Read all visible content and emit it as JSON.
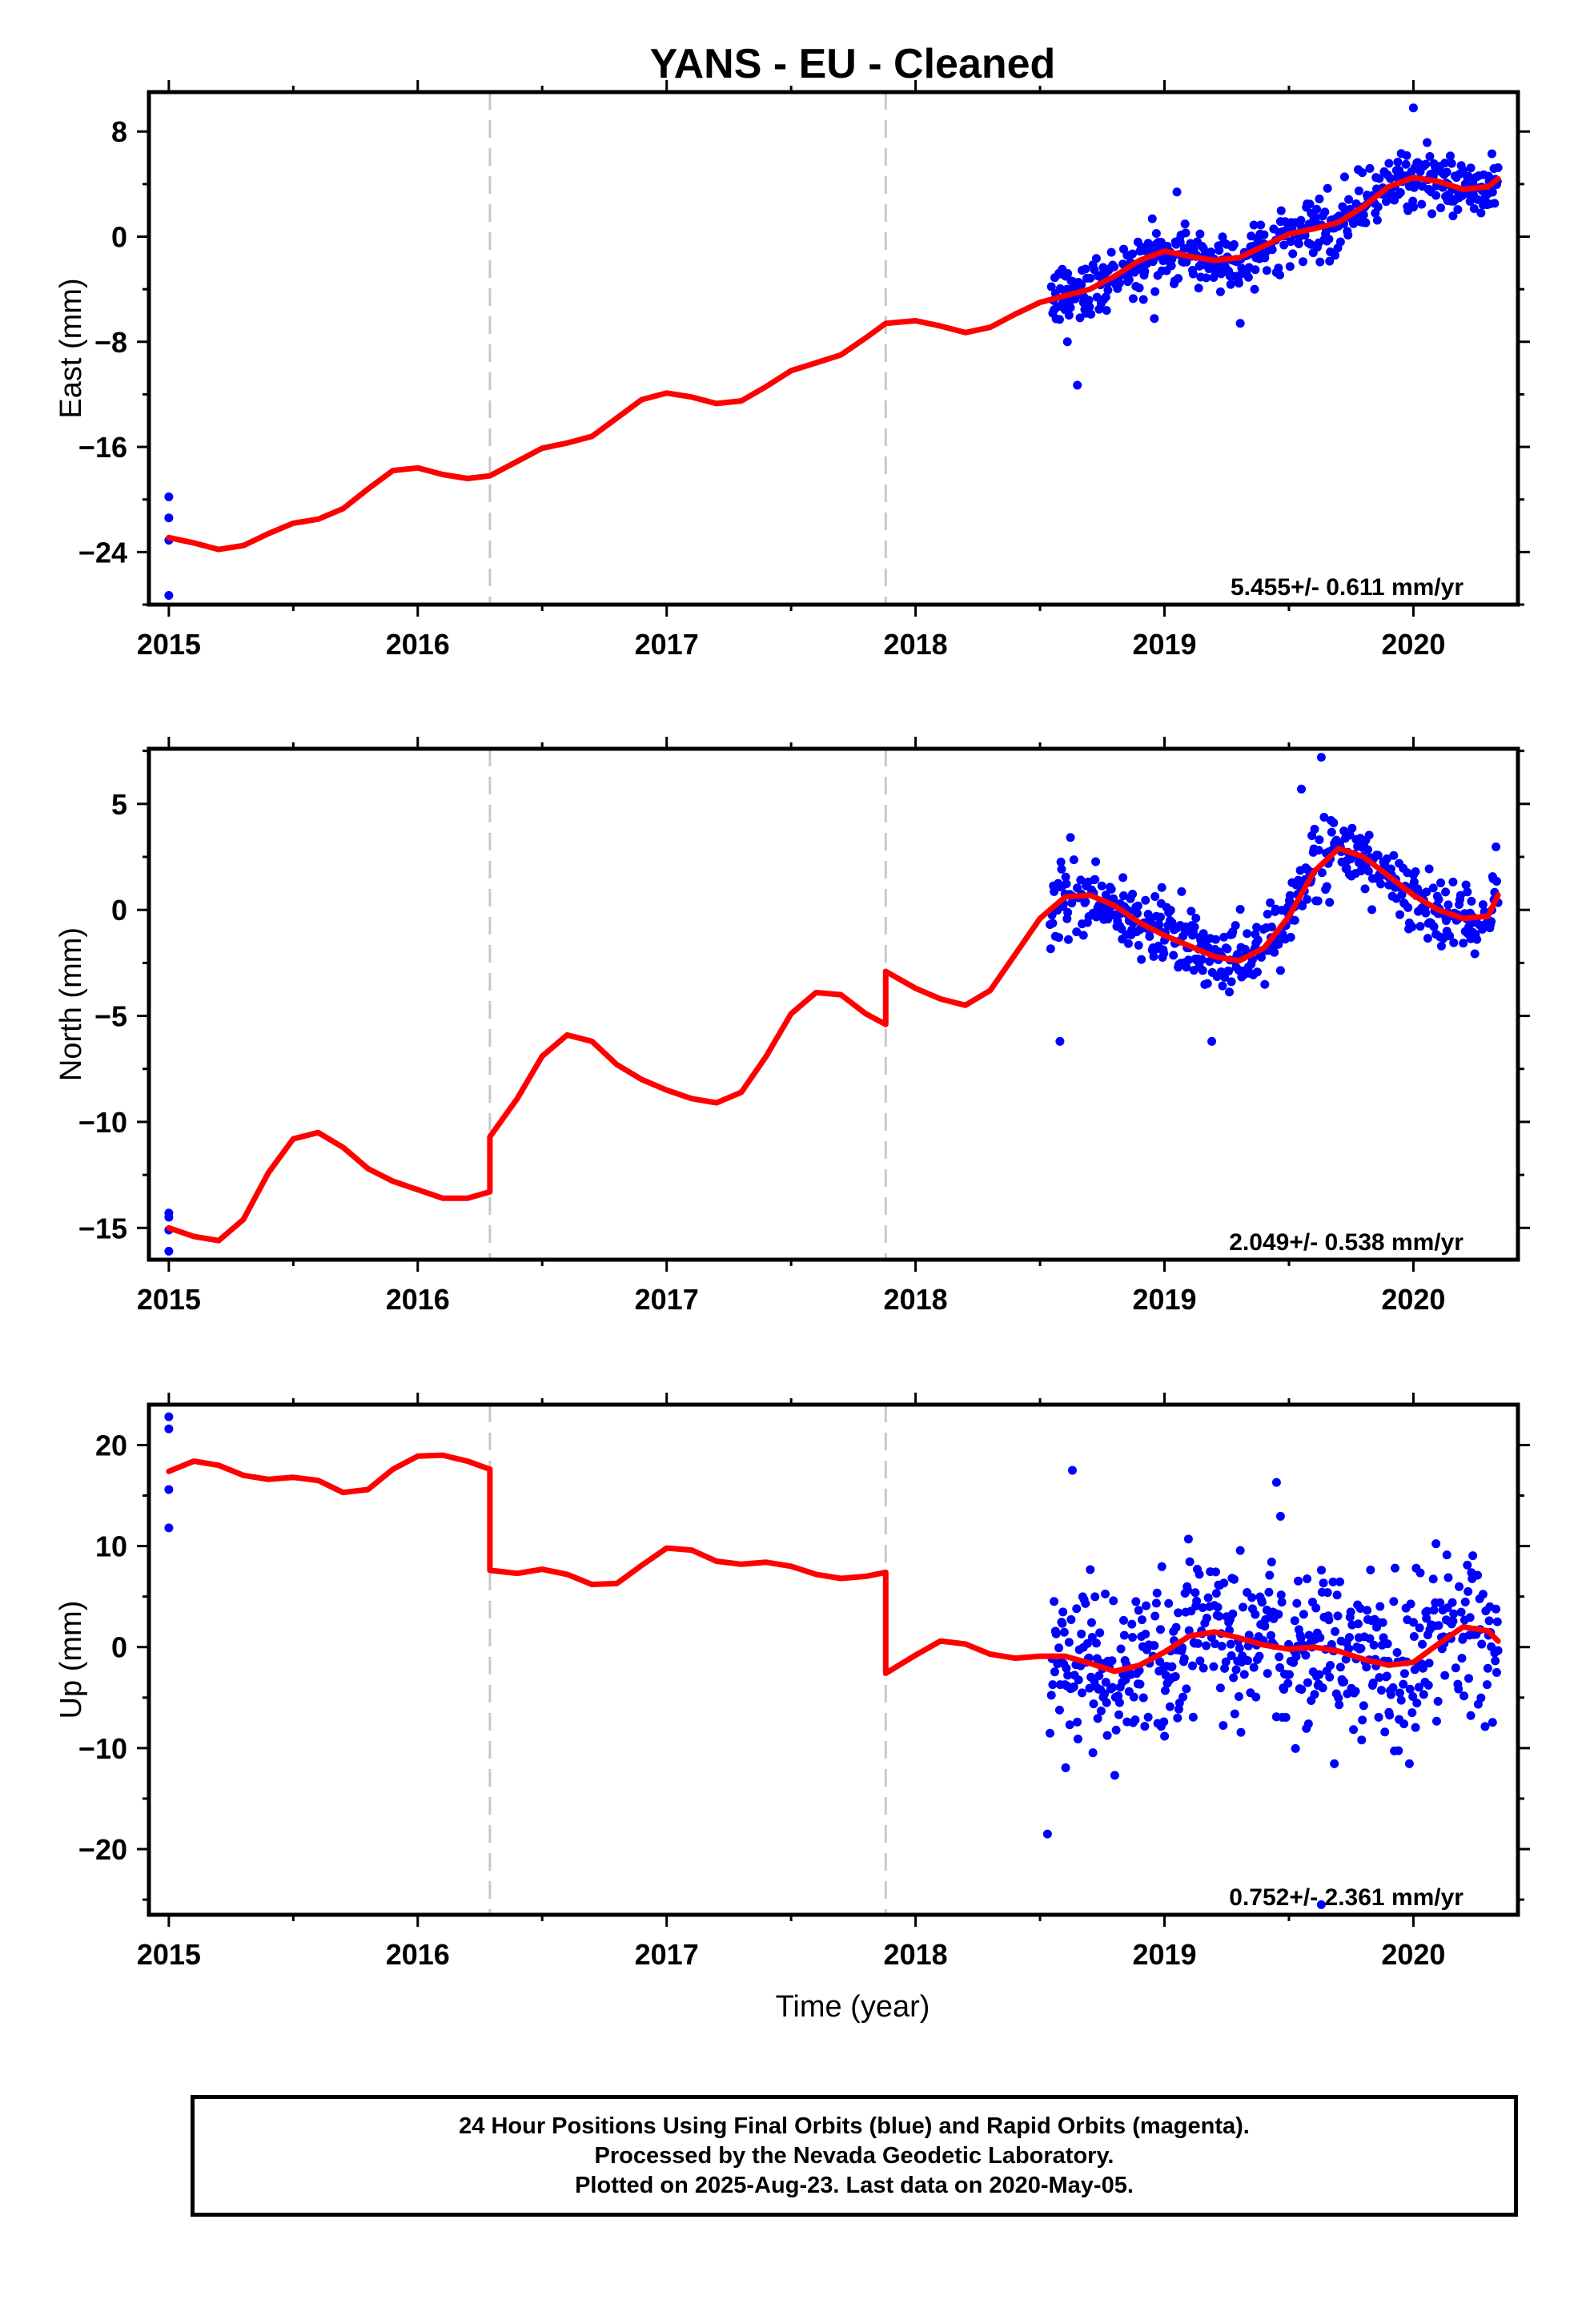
{
  "figure": {
    "title": "YANS  - EU - Cleaned",
    "xlabel": "Time (year)"
  },
  "colors": {
    "data_points": "#0000ff",
    "model_line": "#ff0000",
    "break_line": "#c8c8c8",
    "frame": "#000000"
  },
  "chart_data": [
    {
      "type": "scatter",
      "name": "east",
      "ylabel": "East (mm)",
      "xlim": [
        2014.92,
        2020.42
      ],
      "ylim": [
        -28,
        11
      ],
      "xticks": [
        2015,
        2016,
        2017,
        2018,
        2019,
        2020
      ],
      "xtick_labels": [
        "2015",
        "2016",
        "2017",
        "2018",
        "2019",
        "2020"
      ],
      "yticks": [
        -24,
        -16,
        -8,
        0,
        8
      ],
      "ytick_labels": [
        "−24",
        "−16",
        "−8",
        "0",
        "8"
      ],
      "breaks": [
        2016.29,
        2017.88
      ],
      "rate_label": "5.455+/- 0.611 mm/yr",
      "model_line": {
        "x": [
          2015.0,
          2015.1,
          2015.2,
          2015.3,
          2015.4,
          2015.5,
          2015.6,
          2015.7,
          2015.8,
          2015.9,
          2016.0,
          2016.1,
          2016.2,
          2016.29,
          2016.4,
          2016.5,
          2016.6,
          2016.7,
          2016.8,
          2016.9,
          2017.0,
          2017.1,
          2017.2,
          2017.3,
          2017.4,
          2017.5,
          2017.6,
          2017.7,
          2017.8,
          2017.88,
          2018.0,
          2018.1,
          2018.2,
          2018.3,
          2018.4,
          2018.5,
          2018.6,
          2018.7,
          2018.8,
          2018.9,
          2019.0,
          2019.1,
          2019.2,
          2019.3,
          2019.4,
          2019.5,
          2019.6,
          2019.7,
          2019.8,
          2019.9,
          2020.0,
          2020.1,
          2020.2,
          2020.3,
          2020.34
        ],
        "y": [
          -22.9,
          -23.3,
          -23.8,
          -23.5,
          -22.6,
          -21.8,
          -21.5,
          -20.7,
          -19.2,
          -17.8,
          -17.6,
          -18.1,
          -18.4,
          -18.2,
          -17.1,
          -16.1,
          -15.7,
          -15.2,
          -13.8,
          -12.4,
          -11.9,
          -12.2,
          -12.7,
          -12.5,
          -11.4,
          -10.2,
          -9.6,
          -9.0,
          -7.7,
          -6.6,
          -6.4,
          -6.8,
          -7.3,
          -6.9,
          -5.9,
          -5.0,
          -4.5,
          -4.0,
          -3.0,
          -1.8,
          -1.1,
          -1.5,
          -1.8,
          -1.6,
          -0.7,
          0.2,
          0.6,
          1.1,
          2.3,
          3.8,
          4.5,
          4.2,
          3.6,
          3.8,
          4.4
        ]
      },
      "data_summary": "Blue daily positions: 4 early points near 2015.0 (about -19.8, -21.4, -23.1, -27.3 mm); dense cloud from 2018.55 to 2020.34 scattered roughly ±2.5 mm around the model line, with outliers near -11 mm (2018.65) and +10 mm (2020.0)."
    },
    {
      "type": "scatter",
      "name": "north",
      "ylabel": "North (mm)",
      "xlim": [
        2014.92,
        2020.42
      ],
      "ylim": [
        -16.5,
        7.6
      ],
      "xticks": [
        2015,
        2016,
        2017,
        2018,
        2019,
        2020
      ],
      "xtick_labels": [
        "2015",
        "2016",
        "2017",
        "2018",
        "2019",
        "2020"
      ],
      "yticks": [
        -15,
        -10,
        -5,
        0,
        5
      ],
      "ytick_labels": [
        "−15",
        "−10",
        "−5",
        "0",
        "5"
      ],
      "breaks": [
        2016.29,
        2017.88
      ],
      "rate_label": "2.049+/- 0.538 mm/yr",
      "model_line": {
        "x": [
          2015.0,
          2015.1,
          2015.2,
          2015.3,
          2015.4,
          2015.5,
          2015.6,
          2015.7,
          2015.8,
          2015.9,
          2016.0,
          2016.1,
          2016.2,
          2016.29,
          2016.29,
          2016.4,
          2016.5,
          2016.6,
          2016.7,
          2016.8,
          2016.9,
          2017.0,
          2017.1,
          2017.2,
          2017.3,
          2017.4,
          2017.5,
          2017.6,
          2017.7,
          2017.8,
          2017.88,
          2017.88,
          2018.0,
          2018.1,
          2018.2,
          2018.3,
          2018.4,
          2018.5,
          2018.6,
          2018.7,
          2018.8,
          2018.9,
          2019.0,
          2019.1,
          2019.2,
          2019.3,
          2019.4,
          2019.5,
          2019.6,
          2019.7,
          2019.8,
          2019.9,
          2020.0,
          2020.1,
          2020.2,
          2020.3,
          2020.34
        ],
        "y": [
          -15.0,
          -15.4,
          -15.6,
          -14.6,
          -12.4,
          -10.8,
          -10.5,
          -11.2,
          -12.2,
          -12.8,
          -13.2,
          -13.6,
          -13.6,
          -13.3,
          -10.7,
          -8.9,
          -6.9,
          -5.9,
          -6.2,
          -7.3,
          -8.0,
          -8.5,
          -8.9,
          -9.1,
          -8.6,
          -6.9,
          -4.9,
          -3.9,
          -4.0,
          -4.9,
          -5.4,
          -2.9,
          -3.7,
          -4.2,
          -4.5,
          -3.8,
          -2.1,
          -0.4,
          0.6,
          0.7,
          0.2,
          -0.6,
          -1.2,
          -1.7,
          -2.2,
          -2.4,
          -1.8,
          -0.3,
          1.8,
          2.9,
          2.5,
          1.6,
          0.7,
          0.0,
          -0.4,
          -0.3,
          0.7
        ]
      },
      "data_summary": "Blue daily positions: 4 early points near 2015.0 (about -14.3, -14.5, -15.1, -16.1 mm); dense cloud from 2018.55 to 2020.34 scattered roughly ±1.5 mm around the model line, with outliers near -6.2 mm (2018.58, 2019.19) and +7.2 mm (2019.63)."
    },
    {
      "type": "scatter",
      "name": "up",
      "ylabel": "Up (mm)",
      "xlim": [
        2014.92,
        2020.42
      ],
      "ylim": [
        -26.5,
        24
      ],
      "xticks": [
        2015,
        2016,
        2017,
        2018,
        2019,
        2020
      ],
      "xtick_labels": [
        "2015",
        "2016",
        "2017",
        "2018",
        "2019",
        "2020"
      ],
      "yticks": [
        -20,
        -10,
        0,
        10,
        20
      ],
      "ytick_labels": [
        "−20",
        "−10",
        "0",
        "10",
        "20"
      ],
      "breaks": [
        2016.29,
        2017.88
      ],
      "rate_label": "0.752+/- 2.361 mm/yr",
      "model_line": {
        "x": [
          2015.0,
          2015.1,
          2015.2,
          2015.3,
          2015.4,
          2015.5,
          2015.6,
          2015.7,
          2015.8,
          2015.9,
          2016.0,
          2016.1,
          2016.2,
          2016.29,
          2016.29,
          2016.4,
          2016.5,
          2016.6,
          2016.7,
          2016.8,
          2016.9,
          2017.0,
          2017.1,
          2017.2,
          2017.3,
          2017.4,
          2017.5,
          2017.6,
          2017.7,
          2017.8,
          2017.88,
          2017.88,
          2018.0,
          2018.1,
          2018.2,
          2018.3,
          2018.4,
          2018.5,
          2018.6,
          2018.7,
          2018.8,
          2018.9,
          2019.0,
          2019.1,
          2019.2,
          2019.3,
          2019.4,
          2019.5,
          2019.6,
          2019.7,
          2019.8,
          2019.9,
          2020.0,
          2020.1,
          2020.2,
          2020.3,
          2020.34
        ],
        "y": [
          17.4,
          18.4,
          18.0,
          17.0,
          16.6,
          16.8,
          16.5,
          15.3,
          15.6,
          17.6,
          18.9,
          19.0,
          18.4,
          17.6,
          7.6,
          7.3,
          7.7,
          7.2,
          6.2,
          6.3,
          8.1,
          9.8,
          9.6,
          8.5,
          8.2,
          8.4,
          8.0,
          7.2,
          6.8,
          7.0,
          7.4,
          -2.6,
          -0.8,
          0.6,
          0.3,
          -0.7,
          -1.1,
          -0.9,
          -0.9,
          -1.6,
          -2.4,
          -1.8,
          -0.5,
          1.1,
          1.5,
          0.9,
          0.2,
          -0.2,
          0.0,
          -0.4,
          -1.2,
          -1.8,
          -1.5,
          0.3,
          2.0,
          1.6,
          0.6
        ]
      },
      "data_summary": "Blue daily positions: 4 early points near 2015.0 (about 22.8, 21.6, 15.6, 11.8 mm); dense cloud from 2018.55 to 2020.34 scattered roughly ±6 mm around the model line, extremes near +17.5 mm (2018.63) and -25.5 mm (2019.63)."
    }
  ],
  "footer": {
    "line1": "24 Hour Positions Using Final Orbits (blue) and Rapid Orbits (magenta).",
    "line2": "Processed by the Nevada Geodetic Laboratory.",
    "line3": "Plotted on 2025-Aug-23. Last data on 2020-May-05."
  }
}
